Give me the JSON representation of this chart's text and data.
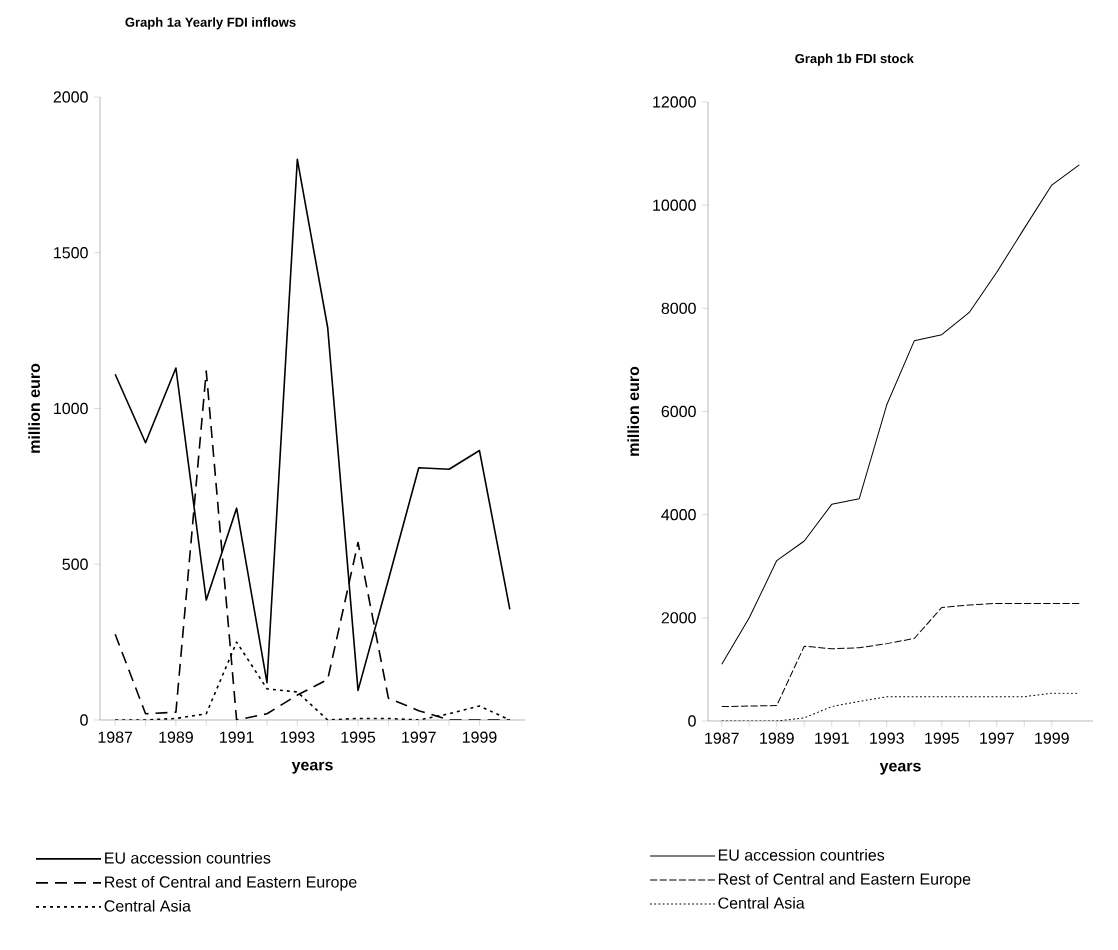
{
  "chart_data": [
    {
      "type": "line",
      "title": "Graph 1a Yearly FDI inflows",
      "xlabel": "years",
      "ylabel": "million euro",
      "x": [
        1987,
        1988,
        1989,
        1990,
        1991,
        1992,
        1993,
        1994,
        1995,
        1996,
        1997,
        1998,
        1999,
        2000
      ],
      "xlim": [
        1986.5,
        2000.5
      ],
      "xticks": [
        1987,
        1989,
        1991,
        1993,
        1995,
        1997,
        1999
      ],
      "ylim": [
        0,
        2000
      ],
      "yticks": [
        0,
        500,
        1000,
        1500,
        2000
      ],
      "legend": "bottom",
      "series": [
        {
          "name": "EU accession countries",
          "color": "#000000",
          "line_style": "solid",
          "values": [
            1110,
            890,
            1130,
            385,
            680,
            120,
            1800,
            1260,
            95,
            450,
            810,
            805,
            865,
            355
          ]
        },
        {
          "name": "Rest of Central and Eastern Europe",
          "color": "#000000",
          "line_style": "dashed",
          "values": [
            275,
            20,
            25,
            1120,
            0,
            20,
            80,
            130,
            570,
            70,
            30,
            0,
            0,
            0
          ]
        },
        {
          "name": "Central Asia",
          "color": "#000000",
          "line_style": "dotted",
          "values": [
            0,
            0,
            5,
            20,
            250,
            100,
            90,
            0,
            5,
            5,
            0,
            20,
            45,
            0
          ]
        }
      ]
    },
    {
      "type": "line",
      "title": "Graph 1b FDI stock",
      "xlabel": "years",
      "ylabel": "million euro",
      "x": [
        1987,
        1988,
        1989,
        1990,
        1991,
        1992,
        1993,
        1994,
        1995,
        1996,
        1997,
        1998,
        1999,
        2000
      ],
      "xlim": [
        1986.5,
        2000.5
      ],
      "xticks": [
        1987,
        1989,
        1991,
        1993,
        1995,
        1997,
        1999
      ],
      "ylim": [
        0,
        12000
      ],
      "yticks": [
        0,
        2000,
        4000,
        6000,
        8000,
        10000,
        12000
      ],
      "legend": "bottom",
      "series": [
        {
          "name": "EU accession countries",
          "color": "#000000",
          "line_style": "solid",
          "values": [
            1100,
            2000,
            3110,
            3490,
            4200,
            4310,
            6130,
            7370,
            7490,
            7920,
            8700,
            9550,
            10390,
            10780
          ]
        },
        {
          "name": "Rest of Central and Eastern Europe",
          "color": "#000000",
          "line_style": "dashed",
          "values": [
            280,
            290,
            300,
            1450,
            1400,
            1420,
            1500,
            1600,
            2200,
            2250,
            2280,
            2280,
            2280,
            2280
          ]
        },
        {
          "name": "Central Asia",
          "color": "#000000",
          "line_style": "dotted",
          "values": [
            0,
            0,
            0,
            60,
            280,
            380,
            470,
            470,
            470,
            470,
            470,
            470,
            540,
            540
          ]
        }
      ]
    }
  ]
}
